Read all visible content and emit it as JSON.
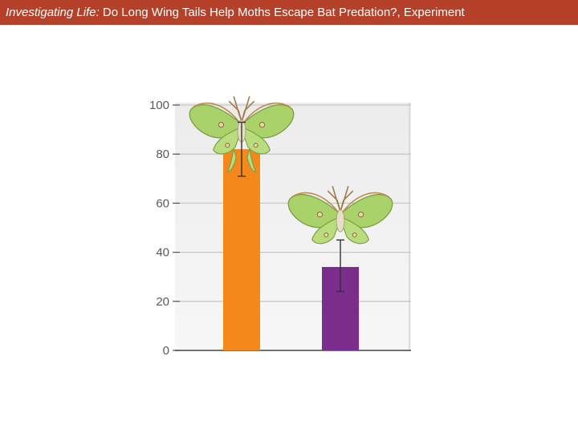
{
  "slide": {
    "title_italic": "Investigating Life:",
    "title_rest": " Do Long Wing Tails Help Moths Escape Bat Predation?, Experiment"
  },
  "colors": {
    "title_bar": "#b5412a",
    "bar_tailed": "#f4881a",
    "bar_tailless": "#7b2d8e",
    "moth_wing": "#a9d36a"
  },
  "chart_data": {
    "type": "bar",
    "title": "",
    "xlabel": "",
    "ylabel": "",
    "ylim": [
      0,
      100
    ],
    "yticks": [
      "0",
      "20",
      "40",
      "60",
      "80",
      "100"
    ],
    "grid": true,
    "categories": [
      "",
      ""
    ],
    "category_icons": [
      "luna-moth-with-tails",
      "luna-moth-tails-removed"
    ],
    "values": [
      82,
      34
    ],
    "error_low": [
      71,
      24
    ],
    "error_high": [
      93,
      45
    ]
  }
}
